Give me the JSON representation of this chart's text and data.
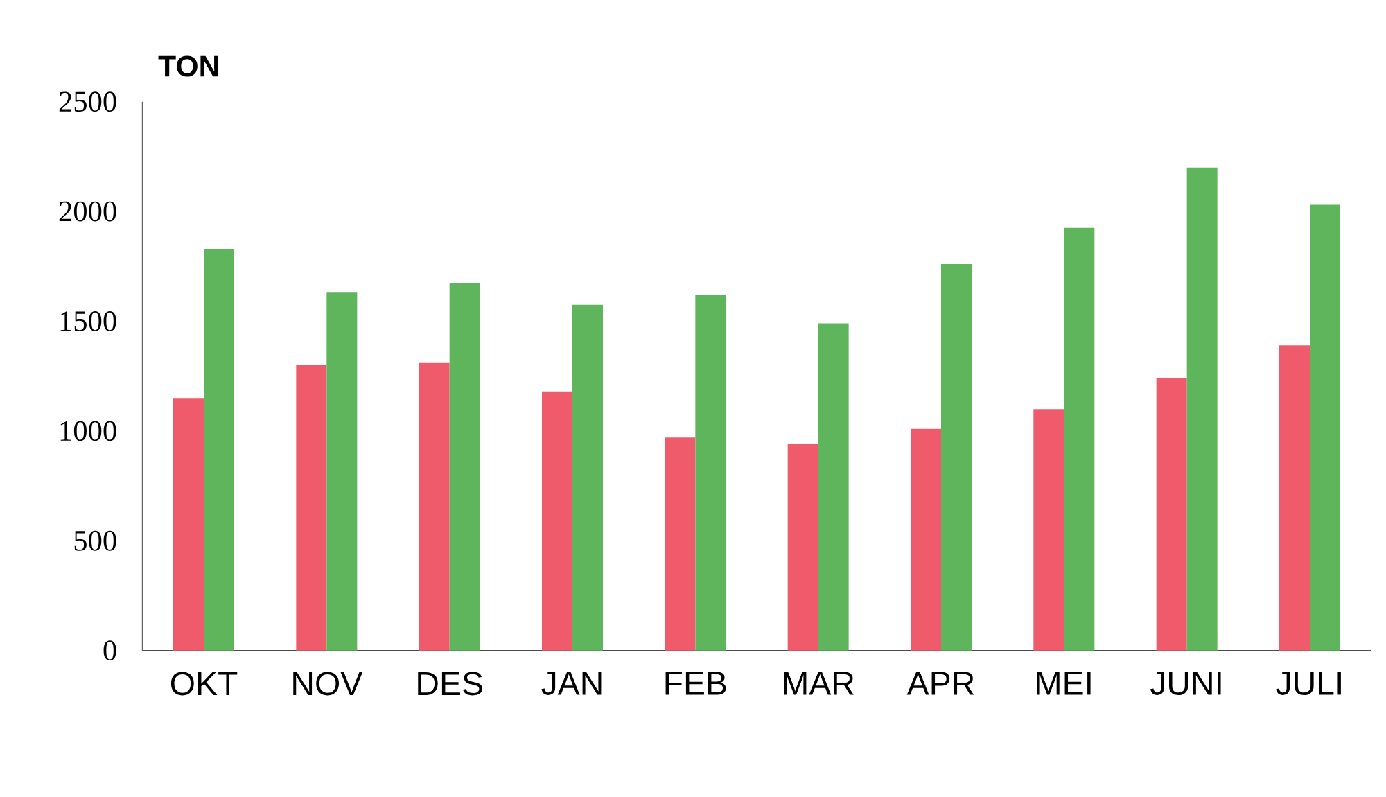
{
  "chart_data": {
    "type": "bar",
    "ylabel": "TON",
    "categories": [
      "OKT",
      "NOV",
      "DES",
      "JAN",
      "FEB",
      "MAR",
      "APR",
      "MEI",
      "JUNI",
      "JULI"
    ],
    "series": [
      {
        "color": "#ef5b6b",
        "values": [
          1150,
          1300,
          1310,
          1180,
          970,
          940,
          1010,
          1100,
          1240,
          1390
        ]
      },
      {
        "color": "#5fb55c",
        "values": [
          1830,
          1630,
          1675,
          1575,
          1620,
          1490,
          1760,
          1925,
          2200,
          2030
        ]
      }
    ],
    "ylim": [
      0,
      2500
    ],
    "yticks": [
      0,
      500,
      1000,
      1500,
      2000,
      2500
    ],
    "grid": false
  }
}
